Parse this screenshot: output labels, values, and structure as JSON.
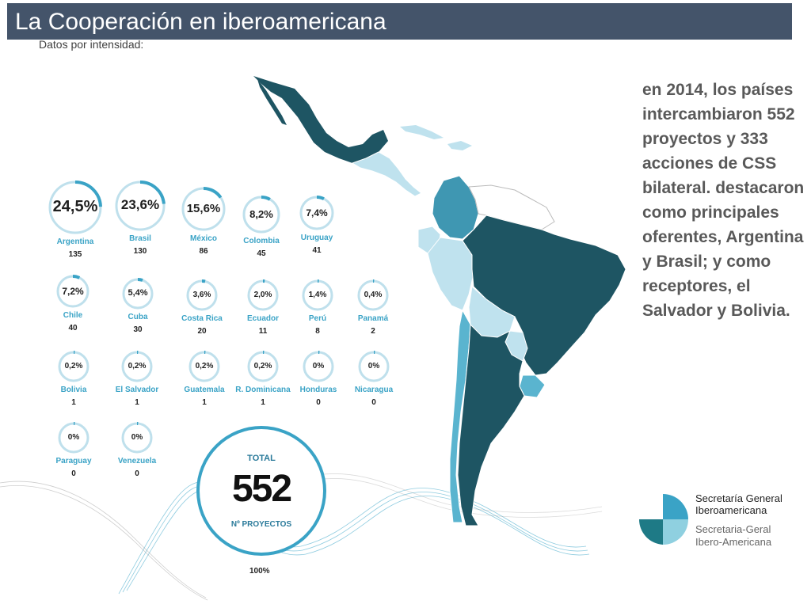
{
  "header": {
    "title": "La Cooperación en iberoamericana",
    "subtitle": "Datos por intensidad:"
  },
  "colors": {
    "title_bar": "#44546a",
    "ring_accent": "#3aa3c6",
    "ring_track": "#bfe0ec",
    "map_dark": "#1e5563",
    "map_mid": "#3f97b2",
    "map_light": "#bfe2ee",
    "map_blank": "#ffffff"
  },
  "stats": [
    {
      "pct": "24,5%",
      "name": "Argentina",
      "count": "135",
      "value": 24.5
    },
    {
      "pct": "23,6%",
      "name": "Brasil",
      "count": "130",
      "value": 23.6
    },
    {
      "pct": "15,6%",
      "name": "México",
      "count": "86",
      "value": 15.6
    },
    {
      "pct": "8,2%",
      "name": "Colombia",
      "count": "45",
      "value": 8.2
    },
    {
      "pct": "7,4%",
      "name": "Uruguay",
      "count": "41",
      "value": 7.4
    },
    {
      "pct": "7,2%",
      "name": "Chile",
      "count": "40",
      "value": 7.2
    },
    {
      "pct": "5,4%",
      "name": "Cuba",
      "count": "30",
      "value": 5.4
    },
    {
      "pct": "3,6%",
      "name": "Costa Rica",
      "count": "20",
      "value": 3.6
    },
    {
      "pct": "2,0%",
      "name": "Ecuador",
      "count": "11",
      "value": 2.0
    },
    {
      "pct": "1,4%",
      "name": "Perú",
      "count": "8",
      "value": 1.4
    },
    {
      "pct": "0,4%",
      "name": "Panamá",
      "count": "2",
      "value": 0.4
    },
    {
      "pct": "0,2%",
      "name": "Bolivia",
      "count": "1",
      "value": 0.2
    },
    {
      "pct": "0,2%",
      "name": "El Salvador",
      "count": "1",
      "value": 0.2
    },
    {
      "pct": "0,2%",
      "name": "Guatemala",
      "count": "1",
      "value": 0.2
    },
    {
      "pct": "0,2%",
      "name": "R. Dominicana",
      "count": "1",
      "value": 0.2
    },
    {
      "pct": "0%",
      "name": "Honduras",
      "count": "0",
      "value": 0
    },
    {
      "pct": "0%",
      "name": "Nicaragua",
      "count": "0",
      "value": 0
    },
    {
      "pct": "0%",
      "name": "Paraguay",
      "count": "0",
      "value": 0
    },
    {
      "pct": "0%",
      "name": "Venezuela",
      "count": "0",
      "value": 0
    }
  ],
  "total": {
    "label": "TOTAL",
    "value": "552",
    "sub": "Nº PROYECTOS",
    "pct": "100%",
    "fraction": 1.0
  },
  "summary": "en 2014, los países intercambiaron 552 proyectos y 333 acciones de CSS bilateral. destacaron como principales oferentes, Argentina  y Brasil; y como receptores, el Salvador y Bolivia.",
  "logo": {
    "line1": "Secretaría General",
    "line2": "Iberoamericana",
    "line3": "Secretaria-Geral",
    "line4": "Ibero-Americana"
  }
}
